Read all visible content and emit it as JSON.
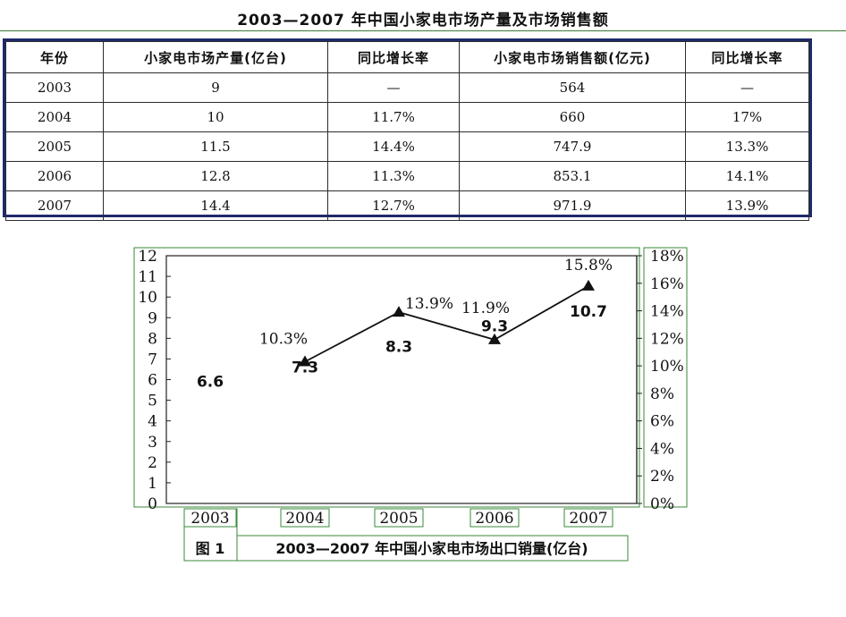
{
  "table": {
    "title": "2003—2007 年中国小家电市场产量及市场销售额",
    "headers": [
      "年份",
      "小家电市场产量(亿台)",
      "同比增长率",
      "小家电市场销售额(亿元)",
      "同比增长率"
    ],
    "rows": [
      [
        "2003",
        "9",
        "—",
        "564",
        "—"
      ],
      [
        "2004",
        "10",
        "11.7%",
        "660",
        "17%"
      ],
      [
        "2005",
        "11.5",
        "14.4%",
        "747.9",
        "13.3%"
      ],
      [
        "2006",
        "12.8",
        "11.3%",
        "853.1",
        "14.1%"
      ],
      [
        "2007",
        "14.4",
        "12.7%",
        "971.9",
        "13.9%"
      ]
    ]
  },
  "chart_data": {
    "type": "bar",
    "categories": [
      "2003",
      "2004",
      "2005",
      "2006",
      "2007"
    ],
    "series": [
      {
        "kind": "bar",
        "values": [
          6.6,
          7.3,
          8.3,
          9.3,
          10.7
        ],
        "labels": [
          "6.6",
          "7.3",
          "8.3",
          "9.3",
          "10.7"
        ]
      },
      {
        "kind": "line",
        "axis": "right",
        "values": [
          null,
          10.3,
          13.9,
          11.9,
          15.8
        ],
        "labels": [
          "",
          "10.3%",
          "13.9%",
          "11.9%",
          "15.8%"
        ]
      }
    ],
    "left_axis": {
      "ylim": [
        0,
        12
      ],
      "ticks": [
        "0",
        "1",
        "2",
        "3",
        "4",
        "5",
        "6",
        "7",
        "8",
        "9",
        "10",
        "11",
        "12"
      ]
    },
    "right_axis": {
      "ylim": [
        0,
        18
      ],
      "ticks": [
        "0%",
        "2%",
        "4%",
        "6%",
        "8%",
        "10%",
        "12%",
        "14%",
        "16%",
        "18%"
      ]
    },
    "figure_label": "图 1",
    "caption": "2003—2007 年中国小家电市场出口销量(亿台)",
    "colors": {
      "bar_fill": "#a8a8a8",
      "frame": "#3a8a3a",
      "line": "#111111"
    }
  }
}
